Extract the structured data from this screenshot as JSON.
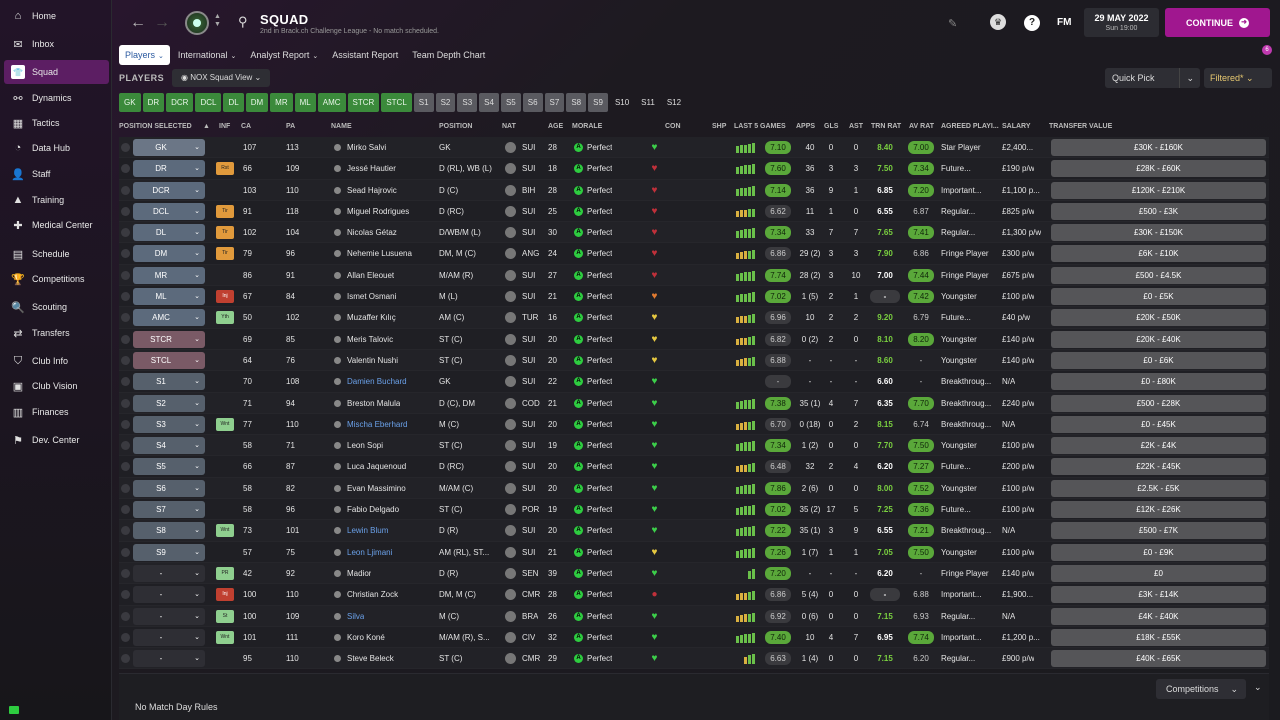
{
  "sidebar": {
    "items": [
      {
        "label": "Home",
        "icon": "home-icon",
        "glyph": "⌂",
        "y": 4
      },
      {
        "label": "Inbox",
        "icon": "inbox-icon",
        "glyph": "✉",
        "y": 32
      },
      {
        "label": "Squad",
        "icon": "shirt-icon",
        "glyph": "👕",
        "y": 60,
        "active": true
      },
      {
        "label": "Dynamics",
        "icon": "dynamics-icon",
        "glyph": "⚯",
        "y": 86
      },
      {
        "label": "Tactics",
        "icon": "tactics-icon",
        "glyph": "▦",
        "y": 111
      },
      {
        "label": "Data Hub",
        "icon": "data-hub-icon",
        "glyph": "◔",
        "y": 136
      },
      {
        "label": "Staff",
        "icon": "staff-icon",
        "glyph": "👤",
        "y": 162
      },
      {
        "label": "Training",
        "icon": "training-icon",
        "glyph": "▲",
        "y": 188
      },
      {
        "label": "Medical Center",
        "icon": "medical-icon",
        "glyph": "✚",
        "y": 213
      },
      {
        "label": "Schedule",
        "icon": "schedule-icon",
        "glyph": "▤",
        "y": 242
      },
      {
        "label": "Competitions",
        "icon": "trophy-icon",
        "glyph": "🏆",
        "y": 267
      },
      {
        "label": "Scouting",
        "icon": "scouting-icon",
        "glyph": "🔍",
        "y": 295
      },
      {
        "label": "Transfers",
        "icon": "transfers-icon",
        "glyph": "⇄",
        "y": 321
      },
      {
        "label": "Club Info",
        "icon": "club-info-icon",
        "glyph": "⛉",
        "y": 349
      },
      {
        "label": "Club Vision",
        "icon": "club-vision-icon",
        "glyph": "▣",
        "y": 374
      },
      {
        "label": "Finances",
        "icon": "finances-icon",
        "glyph": "▥",
        "y": 400
      },
      {
        "label": "Dev. Center",
        "icon": "dev-center-icon",
        "glyph": "⚑",
        "y": 428
      }
    ]
  },
  "header": {
    "title": "SQUAD",
    "subtitle": "2nd in Brack.ch Challenge League - No match scheduled.",
    "date": "29 MAY 2022",
    "time": "Sun 19:00",
    "continue_label": "CONTINUE",
    "fm_label": "FM",
    "notif_count": "6",
    "help_label": "?"
  },
  "tabs": [
    {
      "label": "Players",
      "active": true,
      "chev": true
    },
    {
      "label": "International",
      "chev": true
    },
    {
      "label": "Analyst Report",
      "chev": true
    },
    {
      "label": "Assistant Report"
    },
    {
      "label": "Team Depth Chart"
    }
  ],
  "players_label": "PLAYERS",
  "view_select": "NOX Squad View",
  "quick_pick": "Quick Pick",
  "filtered": "Filtered*",
  "position_filters": [
    {
      "label": "GK",
      "t": "on"
    },
    {
      "label": "DR",
      "t": "on"
    },
    {
      "label": "DCR",
      "t": "on"
    },
    {
      "label": "DCL",
      "t": "on"
    },
    {
      "label": "DL",
      "t": "on"
    },
    {
      "label": "DM",
      "t": "on"
    },
    {
      "label": "MR",
      "t": "on"
    },
    {
      "label": "ML",
      "t": "on"
    },
    {
      "label": "AMC",
      "t": "on"
    },
    {
      "label": "STCR",
      "t": "on"
    },
    {
      "label": "STCL",
      "t": "on"
    },
    {
      "label": "S1",
      "t": "sub"
    },
    {
      "label": "S2",
      "t": "sub"
    },
    {
      "label": "S3",
      "t": "sub"
    },
    {
      "label": "S4",
      "t": "sub"
    },
    {
      "label": "S5",
      "t": "sub"
    },
    {
      "label": "S6",
      "t": "sub"
    },
    {
      "label": "S7",
      "t": "sub"
    },
    {
      "label": "S8",
      "t": "sub"
    },
    {
      "label": "S9",
      "t": "sub"
    },
    {
      "label": "S10",
      "t": "off"
    },
    {
      "label": "S11",
      "t": "off"
    },
    {
      "label": "S12",
      "t": "off"
    }
  ],
  "columns": {
    "possel": "POSITION SELECTED",
    "inf": "INF",
    "ca": "CA",
    "pa": "PA",
    "name": "NAME",
    "position": "POSITION",
    "nat": "NAT",
    "age": "AGE",
    "morale": "MORALE",
    "con": "CON",
    "shp": "SHP",
    "last5": "LAST 5 GAMES",
    "apps": "APPS",
    "gls": "GLS",
    "ast": "AST",
    "trn": "TRN RAT",
    "avr": "AV RAT",
    "agreed": "AGREED PLAYI...",
    "salary": "SALARY",
    "tv": "TRANSFER VALUE"
  },
  "rows": [
    {
      "sel": "GK",
      "inf": "",
      "ca": "107",
      "pa": "113",
      "name": "Mirko Salvi",
      "pos": "GK",
      "nat": "SUI",
      "age": "28",
      "morale": "Perfect",
      "con": "green",
      "bars": [
        6,
        7,
        7,
        8,
        9
      ],
      "l5": "7.10",
      "l5c": "g",
      "apps": "40",
      "gls": "0",
      "ast": "0",
      "trn": "8.40",
      "trnc": "gl",
      "avr": "7.00",
      "avrc": "g",
      "agreed": "Star Player",
      "sal": "£2,400...",
      "tv": "£30K - £160K"
    },
    {
      "sel": "DR",
      "inf": "Rst",
      "ca": "66",
      "pa": "109",
      "name": "Jessé Hautier",
      "pos": "D (RL), WB (L)",
      "nat": "SUI",
      "age": "18",
      "morale": "Perfect",
      "con": "red",
      "bars": [
        6,
        7,
        8,
        8,
        9
      ],
      "l5": "7.60",
      "l5c": "g",
      "apps": "36",
      "gls": "3",
      "ast": "3",
      "trn": "7.50",
      "trnc": "gl",
      "avr": "7.34",
      "avrc": "g",
      "agreed": "Future...",
      "sal": "£190 p/w",
      "tv": "£28K - £60K"
    },
    {
      "sel": "DCR",
      "inf": "",
      "ca": "103",
      "pa": "110",
      "name": "Sead Hajrovic",
      "pos": "D (C)",
      "nat": "BIH",
      "age": "28",
      "morale": "Perfect",
      "con": "red",
      "bars": [
        6,
        7,
        7,
        8,
        9
      ],
      "l5": "7.14",
      "l5c": "g",
      "apps": "36",
      "gls": "9",
      "ast": "1",
      "trn": "6.85",
      "trnc": "n",
      "avr": "7.20",
      "avrc": "g",
      "agreed": "Important...",
      "sal": "£1,100 p...",
      "tv": "£120K - £210K"
    },
    {
      "sel": "DCL",
      "inf": "Tir",
      "ca": "91",
      "pa": "118",
      "name": "Miguel Rodrigues",
      "pos": "D (RC)",
      "nat": "SUI",
      "age": "25",
      "morale": "Perfect",
      "con": "red",
      "bars": [
        5,
        6,
        6,
        7,
        7
      ],
      "l5": "6.62",
      "l5c": "n",
      "apps": "11",
      "gls": "1",
      "ast": "0",
      "trn": "6.55",
      "trnc": "n",
      "avr": "6.87",
      "avrc": "n",
      "agreed": "Regular...",
      "sal": "£825 p/w",
      "tv": "£500 - £3K"
    },
    {
      "sel": "DL",
      "inf": "Tir",
      "ca": "102",
      "pa": "104",
      "name": "Nicolas Gétaz",
      "pos": "D/WB/M (L)",
      "nat": "SUI",
      "age": "30",
      "morale": "Perfect",
      "con": "red",
      "bars": [
        6,
        7,
        8,
        8,
        9
      ],
      "l5": "7.34",
      "l5c": "g",
      "apps": "33",
      "gls": "7",
      "ast": "7",
      "trn": "7.65",
      "trnc": "gl",
      "avr": "7.41",
      "avrc": "g",
      "agreed": "Regular...",
      "sal": "£1,300 p/w",
      "tv": "£30K - £150K"
    },
    {
      "sel": "DM",
      "inf": "Tir",
      "ca": "79",
      "pa": "96",
      "name": "Nehemie Lusuena",
      "pos": "DM, M (C)",
      "nat": "ANG",
      "age": "24",
      "morale": "Perfect",
      "con": "red",
      "bars": [
        5,
        6,
        7,
        7,
        8
      ],
      "l5": "6.86",
      "l5c": "n",
      "apps": "29 (2)",
      "gls": "3",
      "ast": "3",
      "trn": "7.90",
      "trnc": "gl",
      "avr": "6.86",
      "avrc": "n",
      "agreed": "Fringe Player",
      "sal": "£300 p/w",
      "tv": "£6K - £10K"
    },
    {
      "sel": "MR",
      "inf": "",
      "ca": "86",
      "pa": "91",
      "name": "Allan Eleouet",
      "pos": "M/AM (R)",
      "nat": "SUI",
      "age": "27",
      "morale": "Perfect",
      "con": "red",
      "bars": [
        6,
        7,
        8,
        8,
        9
      ],
      "l5": "7.74",
      "l5c": "g",
      "apps": "28 (2)",
      "gls": "3",
      "ast": "10",
      "trn": "7.00",
      "trnc": "n",
      "avr": "7.44",
      "avrc": "g",
      "agreed": "Fringe Player",
      "sal": "£675 p/w",
      "tv": "£500 - £4.5K"
    },
    {
      "sel": "ML",
      "inf": "Inj",
      "ca": "67",
      "pa": "84",
      "name": "Ismet Osmani",
      "pos": "M (L)",
      "nat": "SUI",
      "age": "21",
      "morale": "Perfect",
      "con": "orange",
      "bars": [
        6,
        7,
        7,
        8,
        9
      ],
      "l5": "7.02",
      "l5c": "g",
      "apps": "1 (5)",
      "gls": "2",
      "ast": "1",
      "trn": "-",
      "trnc": "d",
      "avr": "7.42",
      "avrc": "g",
      "agreed": "Youngster",
      "sal": "£100 p/w",
      "tv": "£0 - £5K"
    },
    {
      "sel": "AMC",
      "inf": "Yth",
      "ca": "50",
      "pa": "102",
      "name": "Muzaffer Kılıç",
      "pos": "AM (C)",
      "nat": "TUR",
      "age": "16",
      "morale": "Perfect",
      "con": "yellow",
      "bars": [
        5,
        6,
        6,
        7,
        8
      ],
      "l5": "6.96",
      "l5c": "n",
      "apps": "10",
      "gls": "2",
      "ast": "2",
      "trn": "9.20",
      "trnc": "gl",
      "avr": "6.79",
      "avrc": "n",
      "agreed": "Future...",
      "sal": "£40 p/w",
      "tv": "£20K - £50K"
    },
    {
      "sel": "STCR",
      "inf": "",
      "ca": "69",
      "pa": "85",
      "name": "Meris Talovic",
      "pos": "ST (C)",
      "nat": "SUI",
      "age": "20",
      "morale": "Perfect",
      "con": "yellow",
      "bars": [
        5,
        6,
        6,
        7,
        8
      ],
      "l5": "6.82",
      "l5c": "n",
      "apps": "0 (2)",
      "gls": "2",
      "ast": "0",
      "trn": "8.10",
      "trnc": "gl",
      "avr": "8.20",
      "avrc": "g",
      "agreed": "Youngster",
      "sal": "£140 p/w",
      "tv": "£20K - £40K"
    },
    {
      "sel": "STCL",
      "inf": "",
      "ca": "64",
      "pa": "76",
      "name": "Valentin Nushi",
      "pos": "ST (C)",
      "nat": "SUI",
      "age": "20",
      "morale": "Perfect",
      "con": "yellow",
      "bars": [
        5,
        6,
        7,
        7,
        8
      ],
      "l5": "6.88",
      "l5c": "n",
      "apps": "-",
      "gls": "-",
      "ast": "-",
      "trn": "8.60",
      "trnc": "gl",
      "avr": "-",
      "avrc": "d",
      "agreed": "Youngster",
      "sal": "£140 p/w",
      "tv": "£0 - £6K"
    },
    {
      "sel": "S1",
      "inf": "",
      "ca": "70",
      "pa": "108",
      "name": "Damien Buchard",
      "link": true,
      "pos": "GK",
      "nat": "SUI",
      "age": "22",
      "morale": "Perfect",
      "con": "green",
      "bars": [],
      "l5": "-",
      "l5c": "d",
      "apps": "-",
      "gls": "-",
      "ast": "-",
      "trn": "6.60",
      "trnc": "n",
      "avr": "-",
      "avrc": "d",
      "agreed": "Breakthroug...",
      "sal": "N/A",
      "tv": "£0 - £80K"
    },
    {
      "sel": "S2",
      "inf": "",
      "ca": "71",
      "pa": "94",
      "name": "Breston Malula",
      "pos": "D (C), DM",
      "nat": "COD",
      "age": "21",
      "morale": "Perfect",
      "con": "green",
      "bars": [
        6,
        7,
        8,
        8,
        9
      ],
      "l5": "7.38",
      "l5c": "g",
      "apps": "35 (1)",
      "gls": "4",
      "ast": "7",
      "trn": "6.35",
      "trnc": "n",
      "avr": "7.70",
      "avrc": "g",
      "agreed": "Breakthroug...",
      "sal": "£240 p/w",
      "tv": "£500 - £28K"
    },
    {
      "sel": "S3",
      "inf": "Wnt",
      "ca": "77",
      "pa": "110",
      "name": "Mischa Eberhard",
      "link": true,
      "pos": "M (C)",
      "nat": "SUI",
      "age": "20",
      "morale": "Perfect",
      "con": "green",
      "bars": [
        5,
        6,
        7,
        7,
        8
      ],
      "l5": "6.70",
      "l5c": "n",
      "apps": "0 (18)",
      "gls": "0",
      "ast": "2",
      "trn": "8.15",
      "trnc": "gl",
      "avr": "6.74",
      "avrc": "n",
      "agreed": "Breakthroug...",
      "sal": "N/A",
      "tv": "£0 - £45K"
    },
    {
      "sel": "S4",
      "inf": "",
      "ca": "58",
      "pa": "71",
      "name": "Leon Sopi",
      "pos": "ST (C)",
      "nat": "SUI",
      "age": "19",
      "morale": "Perfect",
      "con": "green",
      "bars": [
        6,
        7,
        8,
        8,
        9
      ],
      "l5": "7.34",
      "l5c": "g",
      "apps": "1 (2)",
      "gls": "0",
      "ast": "0",
      "trn": "7.70",
      "trnc": "gl",
      "avr": "7.50",
      "avrc": "g",
      "agreed": "Youngster",
      "sal": "£100 p/w",
      "tv": "£2K - £4K"
    },
    {
      "sel": "S5",
      "inf": "",
      "ca": "66",
      "pa": "87",
      "name": "Luca Jaquenoud",
      "pos": "D (RC)",
      "nat": "SUI",
      "age": "20",
      "morale": "Perfect",
      "con": "green",
      "bars": [
        5,
        6,
        6,
        7,
        8
      ],
      "l5": "6.48",
      "l5c": "n",
      "apps": "32",
      "gls": "2",
      "ast": "4",
      "trn": "6.20",
      "trnc": "n",
      "avr": "7.27",
      "avrc": "g",
      "agreed": "Future...",
      "sal": "£200 p/w",
      "tv": "£22K - £45K"
    },
    {
      "sel": "S6",
      "inf": "",
      "ca": "58",
      "pa": "82",
      "name": "Evan Massimino",
      "pos": "M/AM (C)",
      "nat": "SUI",
      "age": "20",
      "morale": "Perfect",
      "con": "green",
      "bars": [
        6,
        7,
        8,
        8,
        9
      ],
      "l5": "7.86",
      "l5c": "g",
      "apps": "2 (6)",
      "gls": "0",
      "ast": "0",
      "trn": "8.00",
      "trnc": "gl",
      "avr": "7.52",
      "avrc": "g",
      "agreed": "Youngster",
      "sal": "£100 p/w",
      "tv": "£2.5K - £5K"
    },
    {
      "sel": "S7",
      "inf": "",
      "ca": "58",
      "pa": "96",
      "name": "Fabio Delgado",
      "pos": "ST (C)",
      "nat": "POR",
      "age": "19",
      "morale": "Perfect",
      "con": "green",
      "bars": [
        6,
        7,
        8,
        8,
        9
      ],
      "l5": "7.02",
      "l5c": "g",
      "apps": "35 (2)",
      "gls": "17",
      "ast": "5",
      "trn": "7.25",
      "trnc": "gl",
      "avr": "7.36",
      "avrc": "g",
      "agreed": "Future...",
      "sal": "£100 p/w",
      "tv": "£12K - £26K"
    },
    {
      "sel": "S8",
      "inf": "Wnt",
      "ca": "73",
      "pa": "101",
      "name": "Lewin Blum",
      "link": true,
      "pos": "D (R)",
      "nat": "SUI",
      "age": "20",
      "morale": "Perfect",
      "con": "green",
      "bars": [
        6,
        7,
        8,
        8,
        9
      ],
      "l5": "7.22",
      "l5c": "g",
      "apps": "35 (1)",
      "gls": "3",
      "ast": "9",
      "trn": "6.55",
      "trnc": "n",
      "avr": "7.21",
      "avrc": "g",
      "agreed": "Breakthroug...",
      "sal": "N/A",
      "tv": "£500 - £7K"
    },
    {
      "sel": "S9",
      "inf": "",
      "ca": "57",
      "pa": "75",
      "name": "Leon Ljimani",
      "link": true,
      "pos": "AM (RL), ST...",
      "nat": "SUI",
      "age": "21",
      "morale": "Perfect",
      "con": "yellow",
      "bars": [
        6,
        7,
        8,
        8,
        9
      ],
      "l5": "7.26",
      "l5c": "g",
      "apps": "1 (7)",
      "gls": "1",
      "ast": "1",
      "trn": "7.05",
      "trnc": "gl",
      "avr": "7.50",
      "avrc": "g",
      "agreed": "Youngster",
      "sal": "£100 p/w",
      "tv": "£0 - £9K"
    },
    {
      "sel": "-",
      "inf": "PR",
      "ca": "42",
      "pa": "92",
      "name": "Madior",
      "pos": "D (R)",
      "nat": "SEN",
      "age": "39",
      "morale": "Perfect",
      "con": "green",
      "bars": [
        0,
        0,
        0,
        7,
        9
      ],
      "l5": "7.20",
      "l5c": "g",
      "apps": "-",
      "gls": "-",
      "ast": "-",
      "trn": "6.20",
      "trnc": "n",
      "avr": "-",
      "avrc": "d",
      "agreed": "Fringe Player",
      "sal": "£140 p/w",
      "tv": "£0"
    },
    {
      "sel": "-",
      "inf": "Inj",
      "ca": "100",
      "pa": "110",
      "name": "Christian Zock",
      "pos": "DM, M (C)",
      "nat": "CMR",
      "age": "28",
      "morale": "Perfect",
      "con": "dot",
      "bars": [
        5,
        6,
        6,
        7,
        8
      ],
      "l5": "6.86",
      "l5c": "n",
      "apps": "5 (4)",
      "gls": "0",
      "ast": "0",
      "trn": "-",
      "trnc": "d",
      "avr": "6.88",
      "avrc": "n",
      "agreed": "Important...",
      "sal": "£1,900...",
      "tv": "£3K - £14K"
    },
    {
      "sel": "-",
      "inf": "St",
      "ca": "100",
      "pa": "109",
      "name": "Silva",
      "link": true,
      "pos": "M (C)",
      "nat": "BRA",
      "age": "26",
      "morale": "Perfect",
      "con": "green",
      "bars": [
        5,
        6,
        7,
        7,
        8
      ],
      "l5": "6.92",
      "l5c": "n",
      "apps": "0 (6)",
      "gls": "0",
      "ast": "0",
      "trn": "7.15",
      "trnc": "gl",
      "avr": "6.93",
      "avrc": "n",
      "agreed": "Regular...",
      "sal": "N/A",
      "tv": "£4K - £40K"
    },
    {
      "sel": "-",
      "inf": "Wnt",
      "ca": "101",
      "pa": "111",
      "name": "Koro Koné",
      "pos": "M/AM (R), S...",
      "nat": "CIV",
      "age": "32",
      "morale": "Perfect",
      "con": "green",
      "bars": [
        6,
        7,
        8,
        8,
        9
      ],
      "l5": "7.40",
      "l5c": "g",
      "apps": "10",
      "gls": "4",
      "ast": "7",
      "trn": "6.95",
      "trnc": "n",
      "avr": "7.74",
      "avrc": "g",
      "agreed": "Important...",
      "sal": "£1,200 p...",
      "tv": "£18K - £55K"
    },
    {
      "sel": "-",
      "inf": "",
      "ca": "95",
      "pa": "110",
      "name": "Steve Beleck",
      "pos": "ST (C)",
      "nat": "CMR",
      "age": "29",
      "morale": "Perfect",
      "con": "green",
      "bars": [
        0,
        0,
        6,
        8,
        9
      ],
      "l5": "6.63",
      "l5c": "n",
      "apps": "1 (4)",
      "gls": "0",
      "ast": "0",
      "trn": "7.15",
      "trnc": "gl",
      "avr": "6.20",
      "avrc": "n",
      "agreed": "Regular...",
      "sal": "£900 p/w",
      "tv": "£40K - £65K"
    }
  ],
  "footer": {
    "no_match": "No Match Day Rules",
    "competitions": "Competitions"
  },
  "colors": {
    "accent": "#a0178f",
    "active_nav": "#5c1e63",
    "green_rating": "#5aa83a",
    "link": "#6aa0e8"
  }
}
